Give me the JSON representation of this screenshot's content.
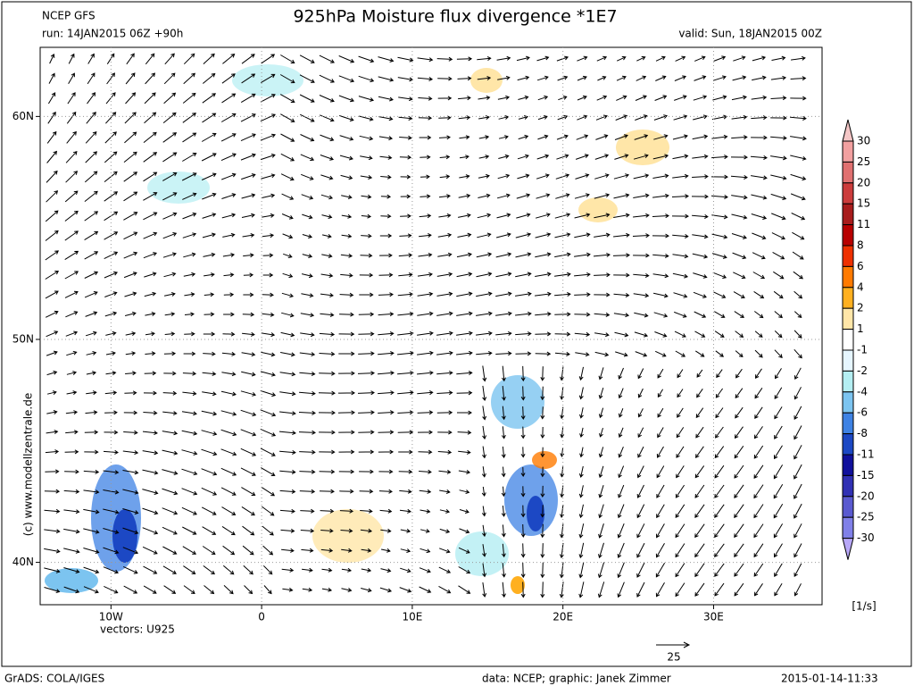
{
  "header": {
    "source": "NCEP GFS",
    "run": "run: 14JAN2015 06Z +90h",
    "title": "925hPa Moisture flux divergence *1E7",
    "valid": "valid: Sun, 18JAN2015 00Z"
  },
  "map": {
    "xlim": [
      -14.7,
      37.2
    ],
    "ylim": [
      38.1,
      63.1
    ],
    "xticks": [
      {
        "value": -10,
        "label": "10W"
      },
      0,
      {
        "value": 10,
        "label": "10E"
      },
      {
        "value": 20,
        "label": "20E"
      },
      {
        "value": 30,
        "label": "30E"
      }
    ],
    "yticks": [
      {
        "value": 40,
        "label": "40N"
      },
      {
        "value": 50,
        "label": "50N"
      },
      {
        "value": 60,
        "label": "60N"
      }
    ],
    "grid": true,
    "vectors_label": "vectors: U925",
    "reference_vector": 25,
    "watermark": "(c) www.modellzentrale.de"
  },
  "colorbar": {
    "levels": [
      30,
      25,
      20,
      15,
      11,
      8,
      6,
      4,
      2,
      1,
      -1,
      -2,
      -4,
      -6,
      -8,
      -11,
      -15,
      -20,
      -25,
      -30
    ],
    "colors": [
      "#f4c6c6",
      "#f2a0a0",
      "#e07070",
      "#cc3c3c",
      "#a81c1c",
      "#b80000",
      "#ee3000",
      "#ff7a00",
      "#ffb020",
      "#ffe6a8",
      "#ffffff",
      "#e6f6ff",
      "#b4eef2",
      "#7cc4f0",
      "#3e82e4",
      "#1c48c4",
      "#10109c",
      "#3030b4",
      "#5a5ad0",
      "#8080e8",
      "#b8a8f8"
    ],
    "unit": "[1/s]"
  },
  "footer": {
    "software": "GrADS: COLA/IGES",
    "credit": "data: NCEP; graphic: Janek Zimmer",
    "timestamp": "2015-01-14-11:33"
  }
}
